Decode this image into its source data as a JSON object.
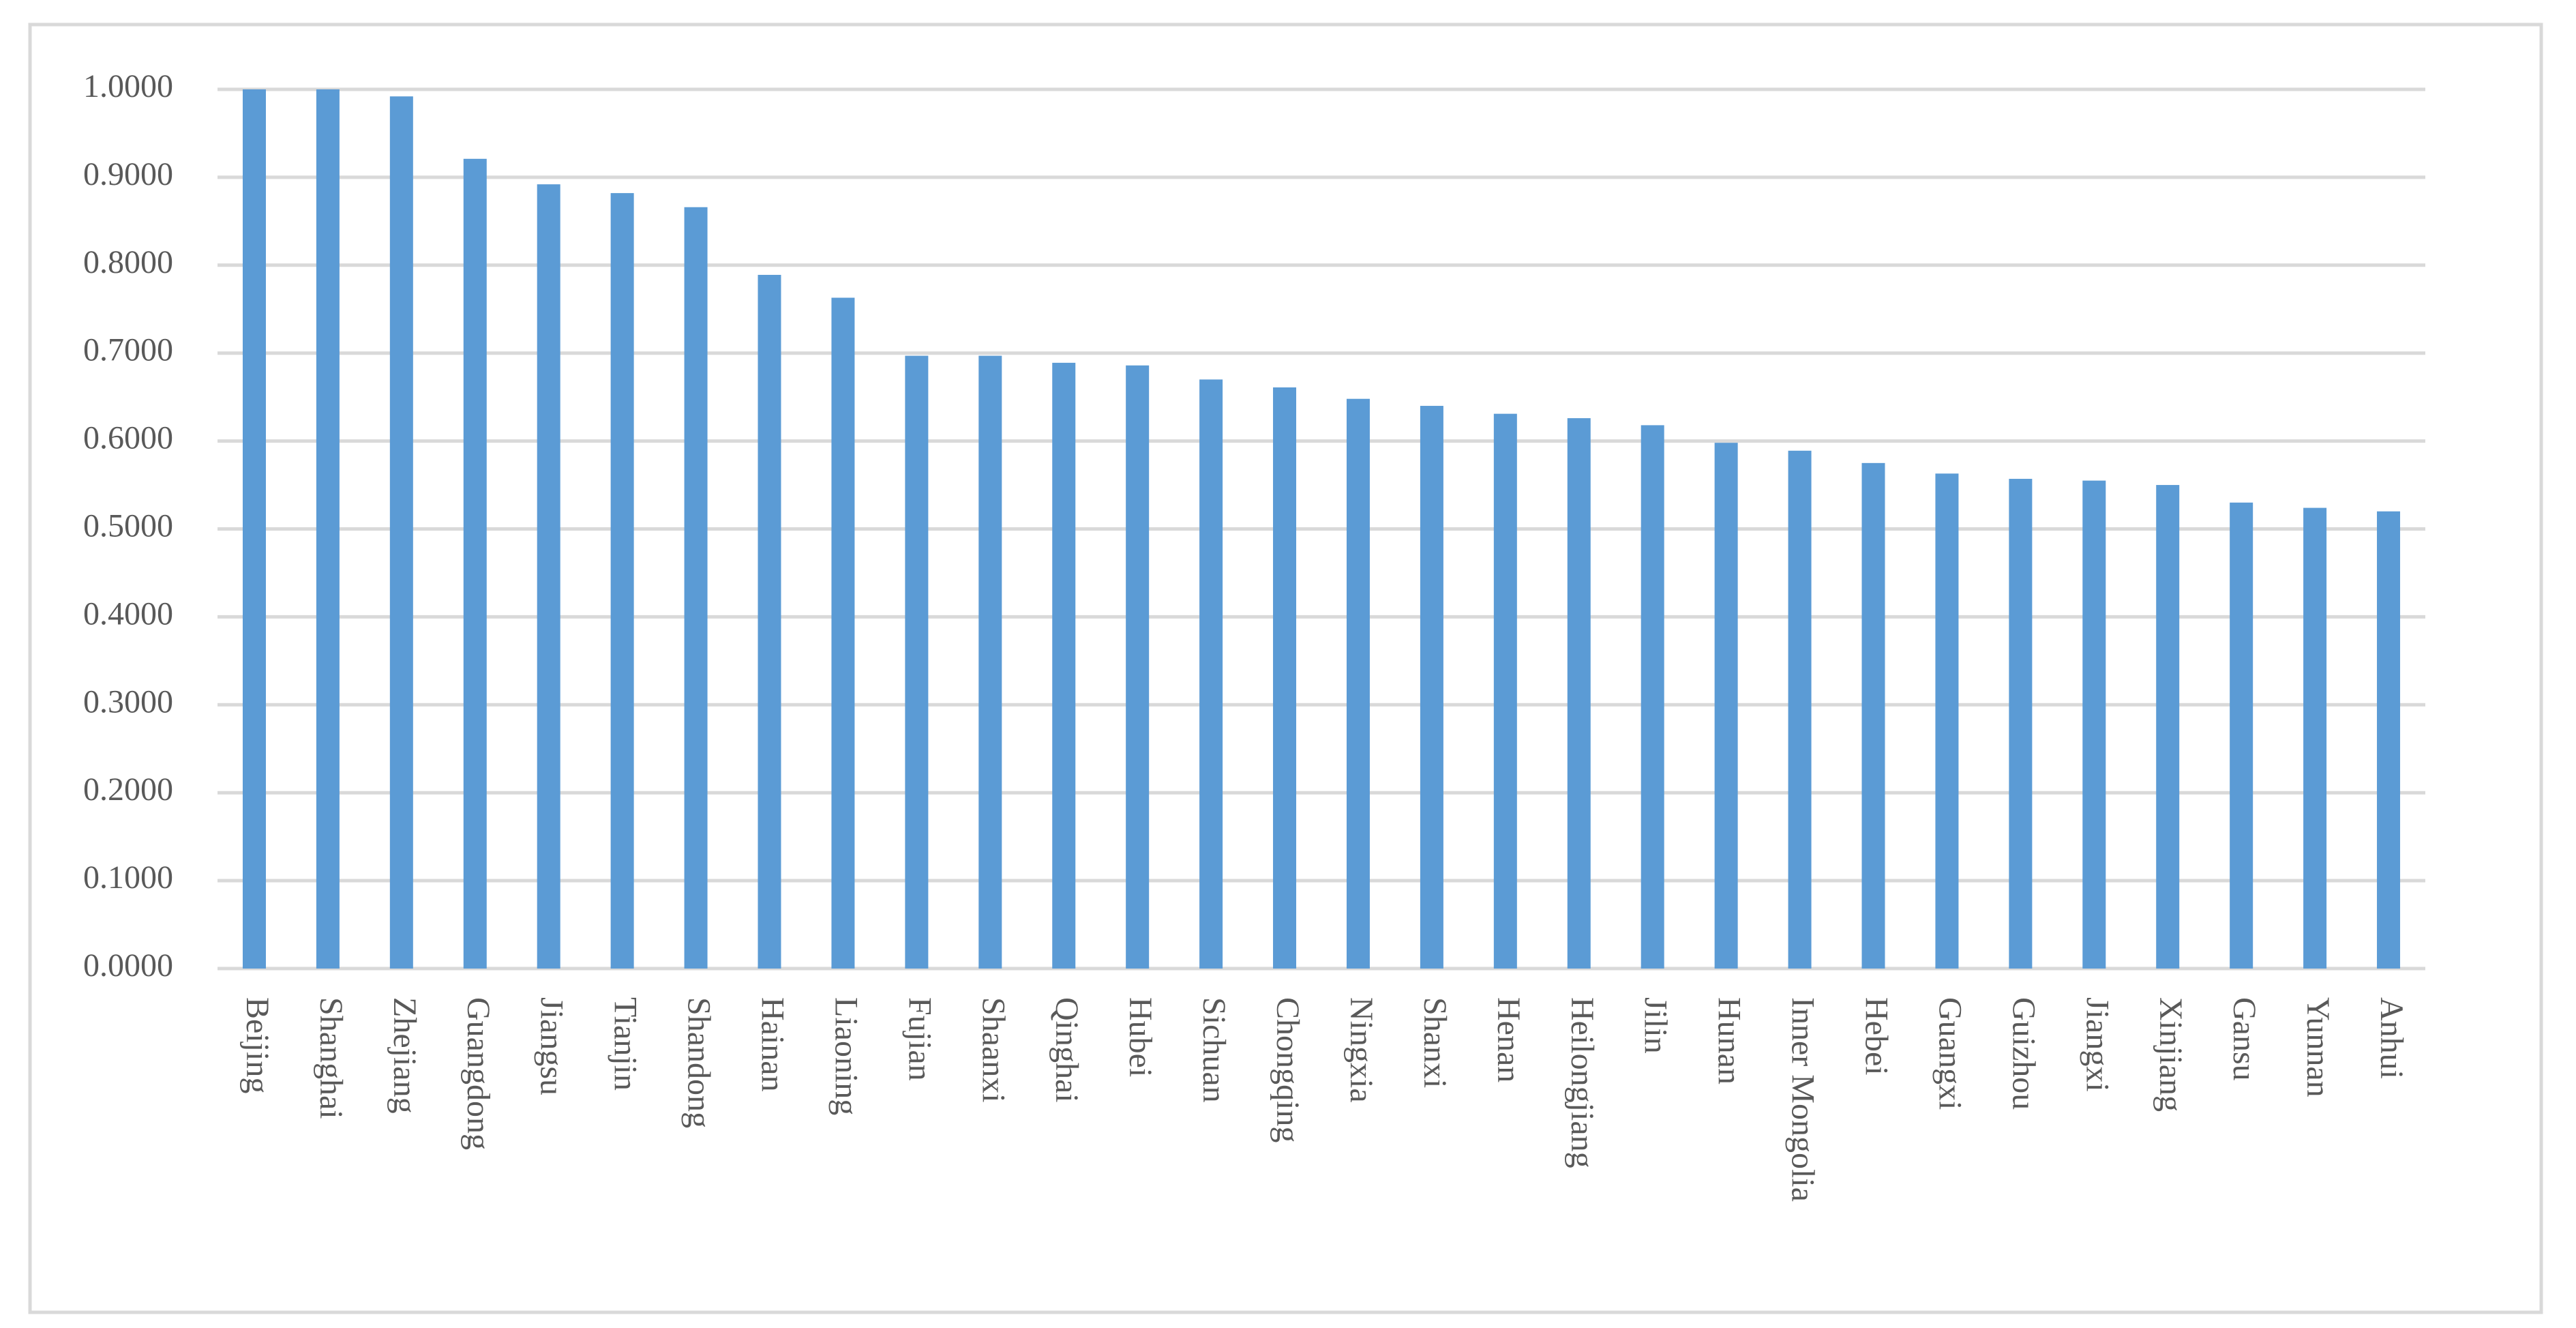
{
  "chart_data": {
    "type": "bar",
    "categories": [
      "Beijing",
      "Shanghai",
      "Zhejiang",
      "Guangdong",
      "Jiangsu",
      "Tianjin",
      "Shandong",
      "Hainan",
      "Liaoning",
      "Fujian",
      "Shaanxi",
      "Qinghai",
      "Hubei",
      "Sichuan",
      "Chongqing",
      "Ningxia",
      "Shanxi",
      "Henan",
      "Heilongjiang",
      "Jilin",
      "Hunan",
      "Inner Mongolia",
      "Hebei",
      "Guangxi",
      "Guizhou",
      "Jiangxi",
      "Xinjiang",
      "Gansu",
      "Yunnan",
      "Anhui"
    ],
    "values": [
      1.0,
      1.0,
      0.992,
      0.921,
      0.892,
      0.882,
      0.866,
      0.789,
      0.763,
      0.697,
      0.697,
      0.689,
      0.686,
      0.67,
      0.661,
      0.648,
      0.64,
      0.631,
      0.626,
      0.618,
      0.598,
      0.589,
      0.575,
      0.563,
      0.557,
      0.555,
      0.55,
      0.53,
      0.524,
      0.52
    ],
    "color": "#5b9bd5",
    "ylim": [
      0,
      1.0
    ],
    "yticks": [
      {
        "value": 0,
        "label": "0.0000"
      },
      {
        "value": 0.1,
        "label": "0.1000"
      },
      {
        "value": 0.2,
        "label": "0.2000"
      },
      {
        "value": 0.3,
        "label": "0.3000"
      },
      {
        "value": 0.4,
        "label": "0.4000"
      },
      {
        "value": 0.5,
        "label": "0.5000"
      },
      {
        "value": 0.6,
        "label": "0.6000"
      },
      {
        "value": 0.7,
        "label": "0.7000"
      },
      {
        "value": 0.8,
        "label": "0.8000"
      },
      {
        "value": 0.9,
        "label": "0.9000"
      },
      {
        "value": 1.0,
        "label": "1.0000"
      }
    ],
    "grid": true
  }
}
